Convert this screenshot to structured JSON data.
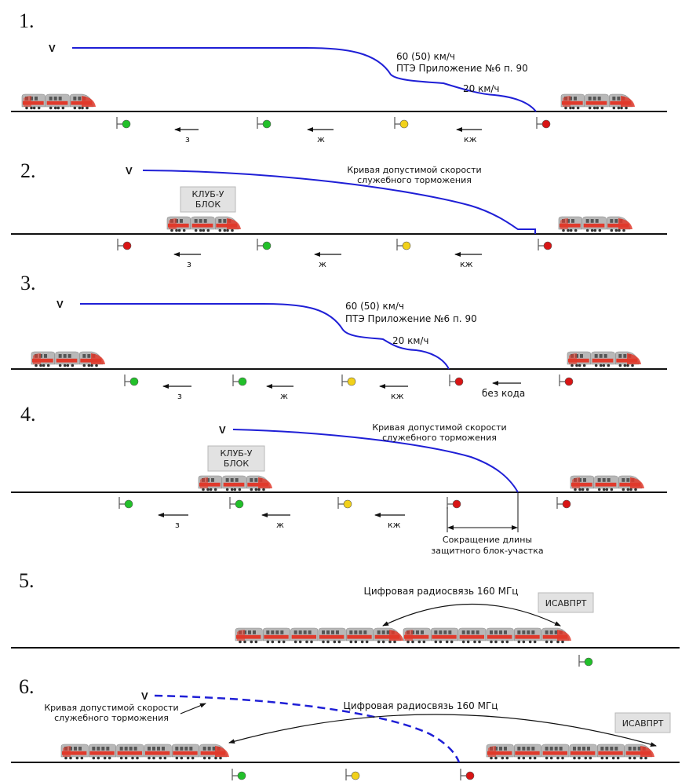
{
  "panels": [
    {
      "number": "1.",
      "v_label": "V",
      "speed_label_1": "60 (50) км/ч",
      "speed_label_2": "ПТЭ Приложение №6 п. 90",
      "speed_label_3": "20 км/ч",
      "codes": [
        "з",
        "ж",
        "кж"
      ]
    },
    {
      "number": "2.",
      "v_label": "V",
      "curve_label_1": "Кривая допустимой скорости",
      "curve_label_2": "служебного торможения",
      "box_line_1": "КЛУБ-У",
      "box_line_2": "БЛОК",
      "codes": [
        "з",
        "ж",
        "кж"
      ]
    },
    {
      "number": "3.",
      "v_label": "V",
      "speed_label_1": "60 (50) км/ч",
      "speed_label_2": "ПТЭ Приложение №6 п. 90",
      "speed_label_3": "20 км/ч",
      "codes": [
        "з",
        "ж",
        "кж"
      ],
      "no_code_label": "без кода"
    },
    {
      "number": "4.",
      "v_label": "V",
      "curve_label_1": "Кривая допустимой скорости",
      "curve_label_2": "служебного торможения",
      "box_line_1": "КЛУБ-У",
      "box_line_2": "БЛОК",
      "codes": [
        "з",
        "ж",
        "кж"
      ],
      "reduction_label_1": "Сокращение длины",
      "reduction_label_2": "защитного блок-участка"
    },
    {
      "number": "5.",
      "radio_label": "Цифровая радиосвязь 160 МГц",
      "box_label": "ИСАВПРТ"
    },
    {
      "number": "6.",
      "v_label": "V",
      "curve_label_1": "Кривая допустимой скорости",
      "curve_label_2": "служебного торможения",
      "radio_label": "Цифровая радиосвязь 160 МГц",
      "box_label": "ИСАВПРТ"
    }
  ],
  "colors": {
    "curve": "#1f1fd6",
    "signal_green": "#22c02a",
    "signal_yellow": "#f2d11a",
    "signal_red": "#d81515",
    "train_red": "#e03a2c",
    "train_gray": "#b8b8b8"
  }
}
